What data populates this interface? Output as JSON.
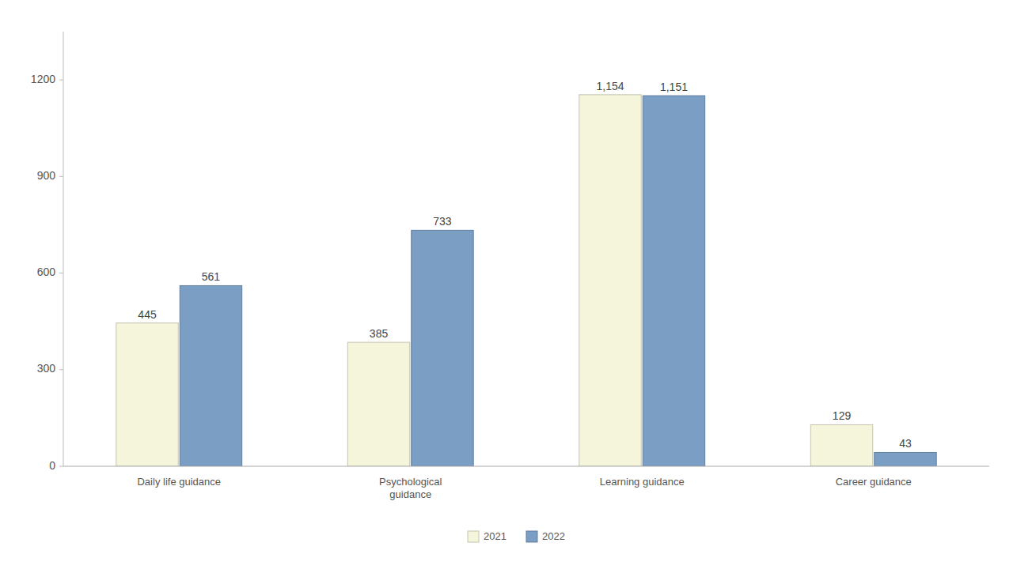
{
  "chart_data": {
    "type": "bar",
    "categories": [
      "Daily life guidance",
      "Psychological\nguidance",
      "Learning guidance",
      "Career guidance"
    ],
    "series": [
      {
        "name": "2021",
        "color": "#F5F5DC",
        "values": [
          445,
          385,
          1154,
          129
        ],
        "value_labels": [
          "445",
          "385",
          "1,154",
          "129"
        ]
      },
      {
        "name": "2022",
        "color": "#7B9EC4",
        "values": [
          561,
          733,
          1151,
          43
        ],
        "value_labels": [
          "561",
          "733",
          "1,151",
          "43"
        ]
      }
    ],
    "ylim": [
      0,
      1350
    ],
    "yticks": [
      0,
      300,
      600,
      900,
      1200
    ],
    "grid": false,
    "legend": "bottom",
    "data_labels": true
  }
}
